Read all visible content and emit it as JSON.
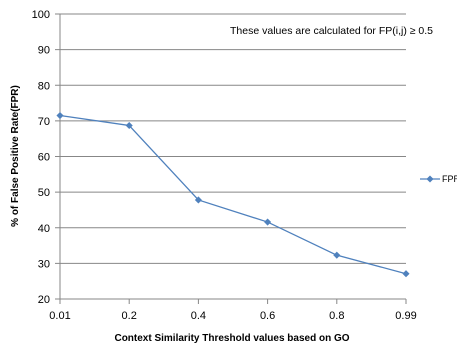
{
  "chart_data": {
    "type": "line",
    "categories": [
      "0.01",
      "0.2",
      "0.4",
      "0.6",
      "0.8",
      "0.99"
    ],
    "series": [
      {
        "name": "FPR",
        "values": [
          71.5,
          68.7,
          47.8,
          41.6,
          32.3,
          27.1
        ],
        "color": "#4f81bd"
      }
    ],
    "xlabel": "Context Similarity Threshold values based on GO",
    "ylabel": "% of False Positive Rate(FPR)",
    "ylim": [
      20,
      100
    ],
    "yticks": [
      "20",
      "30",
      "40",
      "50",
      "60",
      "70",
      "80",
      "90",
      "100"
    ],
    "annotation": "These values are calculated for FP(i,j) ≥ 0.5",
    "grid": true,
    "legend_position": "right"
  }
}
